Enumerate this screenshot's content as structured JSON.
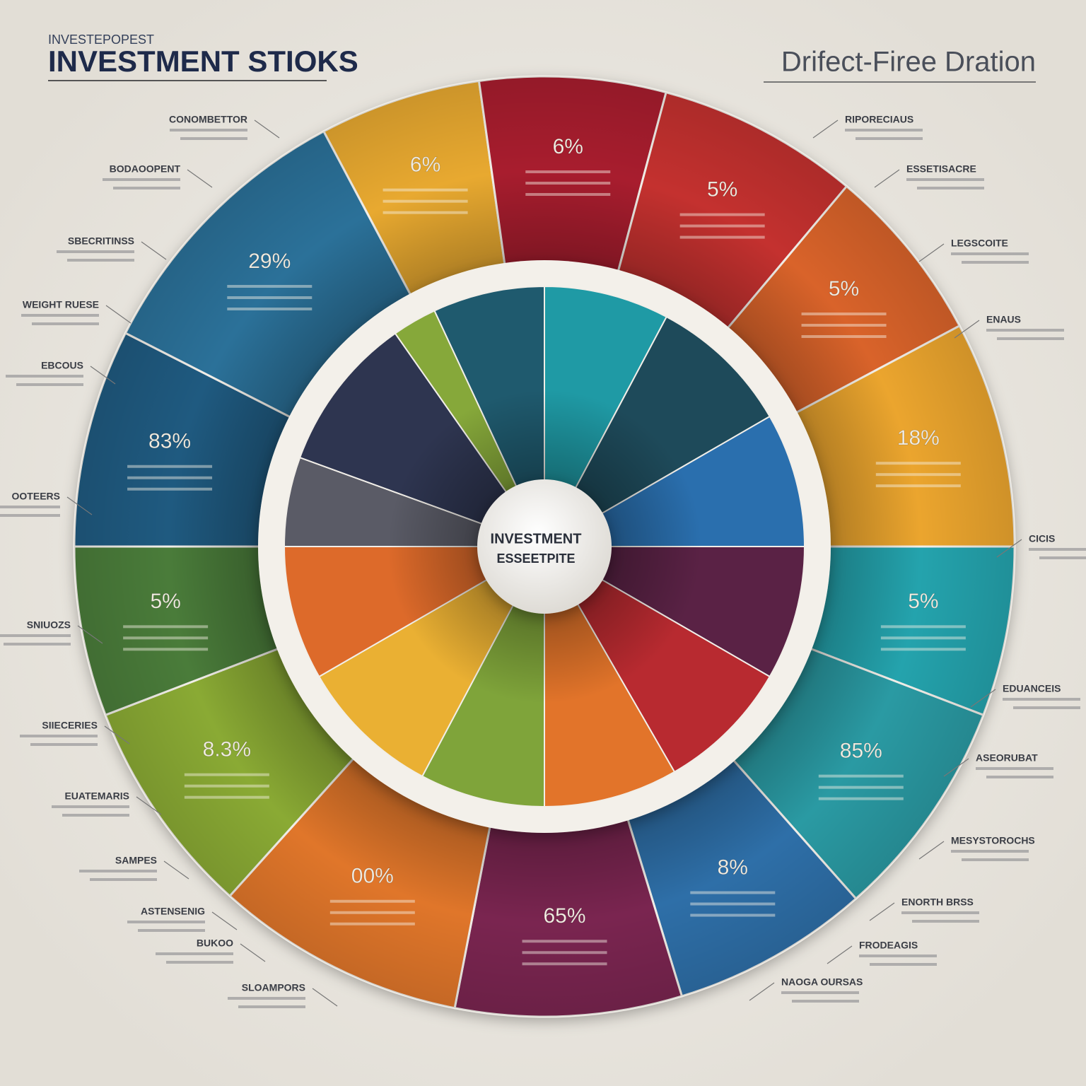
{
  "header": {
    "kicker": "INVESTEPOPEST",
    "title": "INVESTMENT STIOKS",
    "subtitle": "Drifect-Firee Dration"
  },
  "center": {
    "line1": "INVESTMENT",
    "line2": "ESSEETPITE"
  },
  "segments": [
    "6%",
    "6%",
    "5%",
    "5%",
    "18%",
    "5%",
    "85%",
    "8%",
    "65%",
    "00%",
    "8.3%",
    "5%",
    "83%",
    "29%"
  ],
  "left_labels": [
    "CONOMBETTOR",
    "BODAOOPENT",
    "SBECRITINSS",
    "WEIGHT RUESE",
    "EBCOUS",
    "OOTEERS",
    "SNIUOZS",
    "SIIECERIES",
    "EUATEMARIS",
    "SAMPES",
    "ASTENSENIG",
    "BUKOO",
    "SLOAMPORS"
  ],
  "right_labels": [
    "RIPORECIAUS",
    "ESSETISACRE",
    "LEGSCOITE",
    "ENAUS",
    "CICIS",
    "EDUANCEIS",
    "ASEORUBAT",
    "MESYSTOROCHS",
    "ENORTH BRSS",
    "FRODEAGIS",
    "NAOGA OURSAS"
  ]
}
